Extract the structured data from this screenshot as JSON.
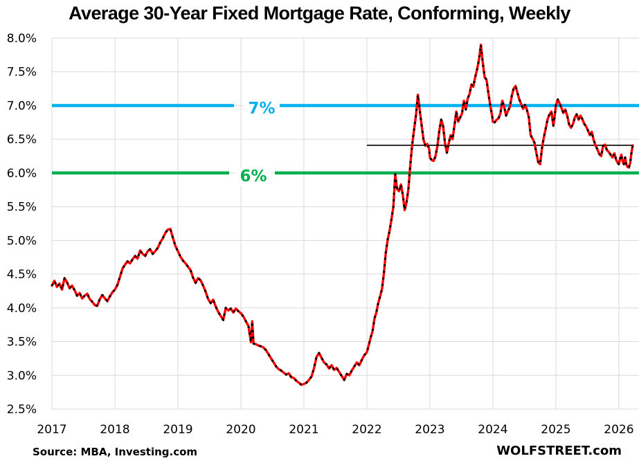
{
  "title": "Average 30-Year Fixed Mortgage Rate, Conforming, Weekly",
  "source_note": "Source: MBA, Investing.com",
  "branding": "WOLFSTREET.com",
  "colors": {
    "background": "#FFFFFF",
    "grid": "#D9D9D9",
    "axis_text": "#000000",
    "series_red": "#FF0000",
    "series_dot_overlay": "#000000",
    "ref_blue": "#00B0F0",
    "ref_green": "#00B050",
    "ref_black": "#000000"
  },
  "chart_data": {
    "type": "line",
    "title": "Average 30-Year Fixed Mortgage Rate, Conforming, Weekly",
    "xlabel": "",
    "ylabel": "",
    "grid": true,
    "legend": "none",
    "x_axis": {
      "ticks": [
        2017,
        2018,
        2019,
        2020,
        2021,
        2022,
        2023,
        2024,
        2025,
        2026
      ],
      "range": [
        2017,
        2026.32
      ]
    },
    "y_axis": {
      "ticks": [
        8.0,
        7.5,
        7.0,
        6.5,
        6.0,
        5.5,
        5.0,
        4.5,
        4.0,
        3.5,
        3.0,
        2.5
      ],
      "tick_labels": [
        "8.0%",
        "7.5%",
        "7.0%",
        "6.5%",
        "6.0%",
        "5.5%",
        "5.0%",
        "4.5%",
        "4.0%",
        "3.5%",
        "3.0%",
        "2.5%"
      ],
      "range": [
        2.5,
        8.0
      ],
      "unit": "%"
    },
    "reference_lines": [
      {
        "label": "7%",
        "value": 7.0,
        "color": "#00B0F0"
      },
      {
        "label": "6%",
        "value": 6.0,
        "color": "#00B050"
      },
      {
        "label": "",
        "value": 6.41,
        "color": "#000000",
        "x_start": 2022,
        "x_end": 2026.22
      }
    ],
    "series": [
      {
        "name": "Average 30-year fixed mortgage rate, weekly",
        "color": "#FF0000",
        "overlay": "black-dotted",
        "points": [
          [
            2017.0,
            4.33
          ],
          [
            2017.04,
            4.4
          ],
          [
            2017.08,
            4.31
          ],
          [
            2017.12,
            4.36
          ],
          [
            2017.16,
            4.27
          ],
          [
            2017.2,
            4.44
          ],
          [
            2017.24,
            4.38
          ],
          [
            2017.28,
            4.29
          ],
          [
            2017.32,
            4.33
          ],
          [
            2017.36,
            4.26
          ],
          [
            2017.4,
            4.18
          ],
          [
            2017.44,
            4.22
          ],
          [
            2017.48,
            4.14
          ],
          [
            2017.52,
            4.18
          ],
          [
            2017.56,
            4.21
          ],
          [
            2017.6,
            4.13
          ],
          [
            2017.64,
            4.09
          ],
          [
            2017.68,
            4.04
          ],
          [
            2017.72,
            4.03
          ],
          [
            2017.76,
            4.13
          ],
          [
            2017.8,
            4.19
          ],
          [
            2017.84,
            4.14
          ],
          [
            2017.88,
            4.1
          ],
          [
            2017.92,
            4.17
          ],
          [
            2017.96,
            4.23
          ],
          [
            2018.0,
            4.27
          ],
          [
            2018.04,
            4.34
          ],
          [
            2018.08,
            4.46
          ],
          [
            2018.12,
            4.58
          ],
          [
            2018.16,
            4.64
          ],
          [
            2018.2,
            4.69
          ],
          [
            2018.24,
            4.66
          ],
          [
            2018.28,
            4.72
          ],
          [
            2018.32,
            4.77
          ],
          [
            2018.36,
            4.73
          ],
          [
            2018.4,
            4.85
          ],
          [
            2018.44,
            4.8
          ],
          [
            2018.48,
            4.77
          ],
          [
            2018.52,
            4.84
          ],
          [
            2018.56,
            4.87
          ],
          [
            2018.6,
            4.8
          ],
          [
            2018.64,
            4.84
          ],
          [
            2018.68,
            4.89
          ],
          [
            2018.72,
            4.97
          ],
          [
            2018.76,
            5.03
          ],
          [
            2018.8,
            5.11
          ],
          [
            2018.84,
            5.16
          ],
          [
            2018.88,
            5.17
          ],
          [
            2018.92,
            5.04
          ],
          [
            2018.96,
            4.92
          ],
          [
            2019.0,
            4.84
          ],
          [
            2019.04,
            4.76
          ],
          [
            2019.08,
            4.7
          ],
          [
            2019.12,
            4.66
          ],
          [
            2019.16,
            4.61
          ],
          [
            2019.2,
            4.56
          ],
          [
            2019.24,
            4.45
          ],
          [
            2019.28,
            4.37
          ],
          [
            2019.32,
            4.44
          ],
          [
            2019.36,
            4.41
          ],
          [
            2019.4,
            4.33
          ],
          [
            2019.44,
            4.24
          ],
          [
            2019.48,
            4.13
          ],
          [
            2019.52,
            4.07
          ],
          [
            2019.56,
            4.12
          ],
          [
            2019.6,
            4.02
          ],
          [
            2019.64,
            3.94
          ],
          [
            2019.68,
            3.88
          ],
          [
            2019.72,
            3.82
          ],
          [
            2019.76,
            4.0
          ],
          [
            2019.8,
            3.96
          ],
          [
            2019.84,
            3.99
          ],
          [
            2019.88,
            3.93
          ],
          [
            2019.92,
            3.99
          ],
          [
            2019.96,
            3.95
          ],
          [
            2020.0,
            3.92
          ],
          [
            2020.04,
            3.87
          ],
          [
            2020.08,
            3.8
          ],
          [
            2020.12,
            3.73
          ],
          [
            2020.16,
            3.49
          ],
          [
            2020.18,
            3.8
          ],
          [
            2020.2,
            3.47
          ],
          [
            2020.24,
            3.46
          ],
          [
            2020.28,
            3.44
          ],
          [
            2020.32,
            3.43
          ],
          [
            2020.36,
            3.41
          ],
          [
            2020.4,
            3.37
          ],
          [
            2020.44,
            3.31
          ],
          [
            2020.48,
            3.25
          ],
          [
            2020.52,
            3.19
          ],
          [
            2020.56,
            3.13
          ],
          [
            2020.6,
            3.09
          ],
          [
            2020.64,
            3.07
          ],
          [
            2020.68,
            3.04
          ],
          [
            2020.72,
            3.01
          ],
          [
            2020.76,
            3.03
          ],
          [
            2020.8,
            2.97
          ],
          [
            2020.84,
            2.96
          ],
          [
            2020.88,
            2.92
          ],
          [
            2020.92,
            2.89
          ],
          [
            2020.96,
            2.86
          ],
          [
            2021.0,
            2.87
          ],
          [
            2021.04,
            2.89
          ],
          [
            2021.08,
            2.93
          ],
          [
            2021.12,
            2.98
          ],
          [
            2021.16,
            3.1
          ],
          [
            2021.2,
            3.27
          ],
          [
            2021.24,
            3.33
          ],
          [
            2021.28,
            3.26
          ],
          [
            2021.32,
            3.19
          ],
          [
            2021.36,
            3.16
          ],
          [
            2021.4,
            3.1
          ],
          [
            2021.44,
            3.15
          ],
          [
            2021.48,
            3.08
          ],
          [
            2021.52,
            3.11
          ],
          [
            2021.56,
            3.05
          ],
          [
            2021.6,
            2.99
          ],
          [
            2021.64,
            2.93
          ],
          [
            2021.68,
            3.02
          ],
          [
            2021.72,
            3.0
          ],
          [
            2021.76,
            3.07
          ],
          [
            2021.8,
            3.13
          ],
          [
            2021.84,
            3.19
          ],
          [
            2021.88,
            3.15
          ],
          [
            2021.92,
            3.23
          ],
          [
            2021.96,
            3.3
          ],
          [
            2022.0,
            3.34
          ],
          [
            2022.03,
            3.45
          ],
          [
            2022.06,
            3.56
          ],
          [
            2022.09,
            3.65
          ],
          [
            2022.12,
            3.84
          ],
          [
            2022.15,
            3.93
          ],
          [
            2022.18,
            4.07
          ],
          [
            2022.21,
            4.17
          ],
          [
            2022.24,
            4.28
          ],
          [
            2022.27,
            4.51
          ],
          [
            2022.3,
            4.81
          ],
          [
            2022.33,
            5.01
          ],
          [
            2022.36,
            5.14
          ],
          [
            2022.39,
            5.31
          ],
          [
            2022.42,
            5.5
          ],
          [
            2022.45,
            5.98
          ],
          [
            2022.48,
            5.76
          ],
          [
            2022.51,
            5.73
          ],
          [
            2022.54,
            5.83
          ],
          [
            2022.57,
            5.68
          ],
          [
            2022.6,
            5.45
          ],
          [
            2022.63,
            5.57
          ],
          [
            2022.66,
            5.77
          ],
          [
            2022.69,
            6.12
          ],
          [
            2022.72,
            6.42
          ],
          [
            2022.75,
            6.65
          ],
          [
            2022.78,
            6.86
          ],
          [
            2022.81,
            7.16
          ],
          [
            2022.84,
            6.92
          ],
          [
            2022.87,
            6.7
          ],
          [
            2022.9,
            6.49
          ],
          [
            2022.93,
            6.4
          ],
          [
            2022.96,
            6.43
          ],
          [
            2022.99,
            6.35
          ],
          [
            2023.0,
            6.23
          ],
          [
            2023.03,
            6.19
          ],
          [
            2023.06,
            6.18
          ],
          [
            2023.09,
            6.25
          ],
          [
            2023.12,
            6.4
          ],
          [
            2023.15,
            6.63
          ],
          [
            2023.18,
            6.79
          ],
          [
            2023.21,
            6.7
          ],
          [
            2023.24,
            6.44
          ],
          [
            2023.27,
            6.3
          ],
          [
            2023.3,
            6.44
          ],
          [
            2023.33,
            6.56
          ],
          [
            2023.36,
            6.5
          ],
          [
            2023.39,
            6.7
          ],
          [
            2023.42,
            6.91
          ],
          [
            2023.45,
            6.76
          ],
          [
            2023.48,
            6.82
          ],
          [
            2023.51,
            6.88
          ],
          [
            2023.54,
            7.07
          ],
          [
            2023.57,
            6.94
          ],
          [
            2023.6,
            7.1
          ],
          [
            2023.63,
            7.17
          ],
          [
            2023.66,
            7.31
          ],
          [
            2023.69,
            7.28
          ],
          [
            2023.72,
            7.42
          ],
          [
            2023.75,
            7.54
          ],
          [
            2023.78,
            7.68
          ],
          [
            2023.81,
            7.9
          ],
          [
            2023.84,
            7.63
          ],
          [
            2023.87,
            7.42
          ],
          [
            2023.9,
            7.38
          ],
          [
            2023.93,
            7.18
          ],
          [
            2023.96,
            6.99
          ],
          [
            2023.99,
            6.84
          ],
          [
            2024.0,
            6.76
          ],
          [
            2024.03,
            6.75
          ],
          [
            2024.06,
            6.79
          ],
          [
            2024.09,
            6.81
          ],
          [
            2024.12,
            6.88
          ],
          [
            2024.15,
            7.07
          ],
          [
            2024.18,
            6.98
          ],
          [
            2024.21,
            6.85
          ],
          [
            2024.24,
            6.92
          ],
          [
            2024.27,
            6.98
          ],
          [
            2024.3,
            7.14
          ],
          [
            2024.33,
            7.25
          ],
          [
            2024.36,
            7.29
          ],
          [
            2024.39,
            7.19
          ],
          [
            2024.42,
            7.09
          ],
          [
            2024.45,
            7.02
          ],
          [
            2024.48,
            6.95
          ],
          [
            2024.51,
            7.01
          ],
          [
            2024.54,
            6.94
          ],
          [
            2024.57,
            6.83
          ],
          [
            2024.6,
            6.56
          ],
          [
            2024.63,
            6.51
          ],
          [
            2024.66,
            6.45
          ],
          [
            2024.69,
            6.3
          ],
          [
            2024.72,
            6.16
          ],
          [
            2024.75,
            6.13
          ],
          [
            2024.78,
            6.37
          ],
          [
            2024.81,
            6.53
          ],
          [
            2024.84,
            6.66
          ],
          [
            2024.87,
            6.8
          ],
          [
            2024.9,
            6.87
          ],
          [
            2024.93,
            6.91
          ],
          [
            2024.96,
            6.7
          ],
          [
            2024.99,
            6.91
          ],
          [
            2025.0,
            7.0
          ],
          [
            2025.03,
            7.09
          ],
          [
            2025.06,
            7.03
          ],
          [
            2025.09,
            6.96
          ],
          [
            2025.12,
            6.89
          ],
          [
            2025.15,
            6.94
          ],
          [
            2025.18,
            6.85
          ],
          [
            2025.21,
            6.72
          ],
          [
            2025.24,
            6.67
          ],
          [
            2025.27,
            6.72
          ],
          [
            2025.3,
            6.82
          ],
          [
            2025.33,
            6.87
          ],
          [
            2025.36,
            6.79
          ],
          [
            2025.39,
            6.85
          ],
          [
            2025.42,
            6.8
          ],
          [
            2025.45,
            6.73
          ],
          [
            2025.48,
            6.69
          ],
          [
            2025.51,
            6.63
          ],
          [
            2025.54,
            6.56
          ],
          [
            2025.57,
            6.61
          ],
          [
            2025.6,
            6.49
          ],
          [
            2025.63,
            6.41
          ],
          [
            2025.66,
            6.35
          ],
          [
            2025.69,
            6.28
          ],
          [
            2025.72,
            6.25
          ],
          [
            2025.75,
            6.4
          ],
          [
            2025.78,
            6.42
          ],
          [
            2025.81,
            6.34
          ],
          [
            2025.84,
            6.31
          ],
          [
            2025.87,
            6.27
          ],
          [
            2025.9,
            6.23
          ],
          [
            2025.93,
            6.29
          ],
          [
            2025.96,
            6.19
          ],
          [
            2025.99,
            6.14
          ],
          [
            2026.0,
            6.13
          ],
          [
            2026.02,
            6.21
          ],
          [
            2026.04,
            6.27
          ],
          [
            2026.06,
            6.17
          ],
          [
            2026.08,
            6.13
          ],
          [
            2026.1,
            6.23
          ],
          [
            2026.12,
            6.12
          ],
          [
            2026.14,
            6.09
          ],
          [
            2026.16,
            6.08
          ],
          [
            2026.18,
            6.15
          ],
          [
            2026.2,
            6.3
          ],
          [
            2026.22,
            6.41
          ]
        ]
      }
    ]
  }
}
